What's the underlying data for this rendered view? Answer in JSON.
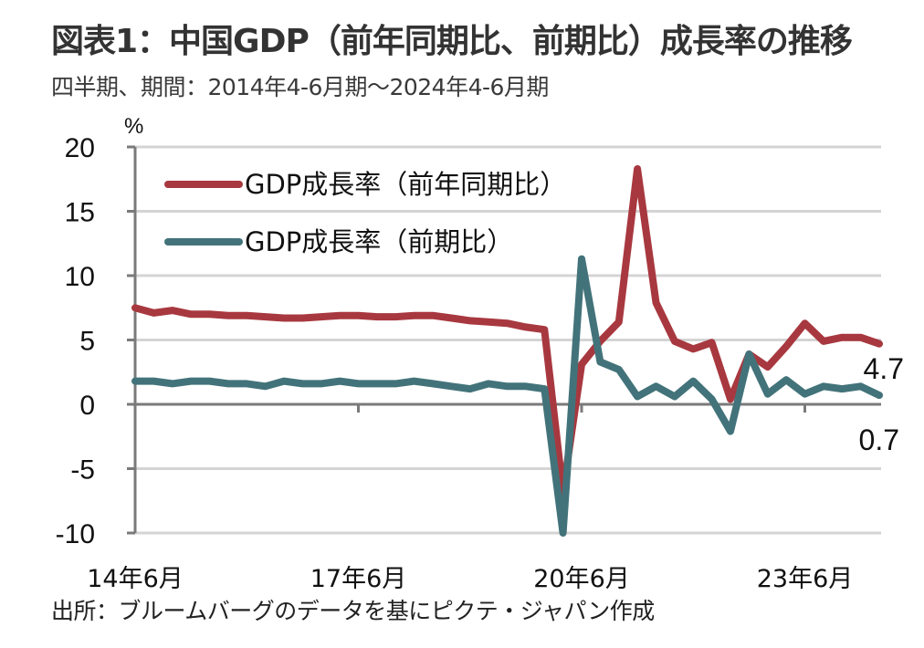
{
  "header": {
    "title": "図表1：中国GDP（前年同期比、前期比）成長率の推移",
    "subtitle": "四半期、期間：2014年4-6月期～2024年4-6月期"
  },
  "footer": {
    "source": "出所：ブルームバーグのデータを基にピクテ・ジャパン作成"
  },
  "chart_data": {
    "type": "line",
    "title": "図表1：中国GDP（前年同期比、前期比）成長率の推移",
    "subtitle": "四半期、期間：2014年4-6月期～2024年4-6月期",
    "ylabel": "%",
    "xlabel": "",
    "ylim": [
      -10,
      20
    ],
    "yticks": [
      20,
      15,
      10,
      5,
      0,
      -5,
      -10
    ],
    "ytick_labels": [
      "20",
      "15",
      "10",
      "5",
      "0",
      "-5",
      "-10"
    ],
    "xticks": [
      {
        "index": 0,
        "label": "14年6月"
      },
      {
        "index": 12,
        "label": "17年6月"
      },
      {
        "index": 24,
        "label": "20年6月"
      },
      {
        "index": 36,
        "label": "23年6月"
      }
    ],
    "grid": true,
    "legend_position": "top-left",
    "x": [
      "2014Q2",
      "2014Q3",
      "2014Q4",
      "2015Q1",
      "2015Q2",
      "2015Q3",
      "2015Q4",
      "2016Q1",
      "2016Q2",
      "2016Q3",
      "2016Q4",
      "2017Q1",
      "2017Q2",
      "2017Q3",
      "2017Q4",
      "2018Q1",
      "2018Q2",
      "2018Q3",
      "2018Q4",
      "2019Q1",
      "2019Q2",
      "2019Q3",
      "2019Q4",
      "2020Q1",
      "2020Q2",
      "2020Q3",
      "2020Q4",
      "2021Q1",
      "2021Q2",
      "2021Q3",
      "2021Q4",
      "2022Q1",
      "2022Q2",
      "2022Q3",
      "2022Q4",
      "2023Q1",
      "2023Q2",
      "2023Q3",
      "2023Q4",
      "2024Q1",
      "2024Q2"
    ],
    "series": [
      {
        "name": "GDP成長率（前年同期比）",
        "color": "#a8383f",
        "values": [
          7.5,
          7.1,
          7.3,
          7.0,
          7.0,
          6.9,
          6.9,
          6.8,
          6.7,
          6.7,
          6.8,
          6.9,
          6.9,
          6.8,
          6.8,
          6.9,
          6.9,
          6.7,
          6.5,
          6.4,
          6.3,
          6.0,
          5.8,
          -6.8,
          3.1,
          4.9,
          6.4,
          18.3,
          7.9,
          4.9,
          4.3,
          4.8,
          0.4,
          3.9,
          2.9,
          4.5,
          6.3,
          4.9,
          5.2,
          5.2,
          4.7
        ]
      },
      {
        "name": "GDP成長率（前期比）",
        "color": "#43737a",
        "values": [
          1.8,
          1.8,
          1.6,
          1.8,
          1.8,
          1.6,
          1.6,
          1.4,
          1.8,
          1.6,
          1.6,
          1.8,
          1.6,
          1.6,
          1.6,
          1.8,
          1.6,
          1.4,
          1.2,
          1.6,
          1.4,
          1.4,
          1.2,
          -10.0,
          11.3,
          3.3,
          2.7,
          0.6,
          1.4,
          0.6,
          1.8,
          0.4,
          -2.1,
          3.9,
          0.8,
          1.9,
          0.8,
          1.4,
          1.2,
          1.4,
          0.7
        ]
      }
    ],
    "annotations": [
      {
        "series": 0,
        "index": 40,
        "label": "4.7"
      },
      {
        "series": 1,
        "index": 40,
        "label": "0.7"
      }
    ]
  }
}
